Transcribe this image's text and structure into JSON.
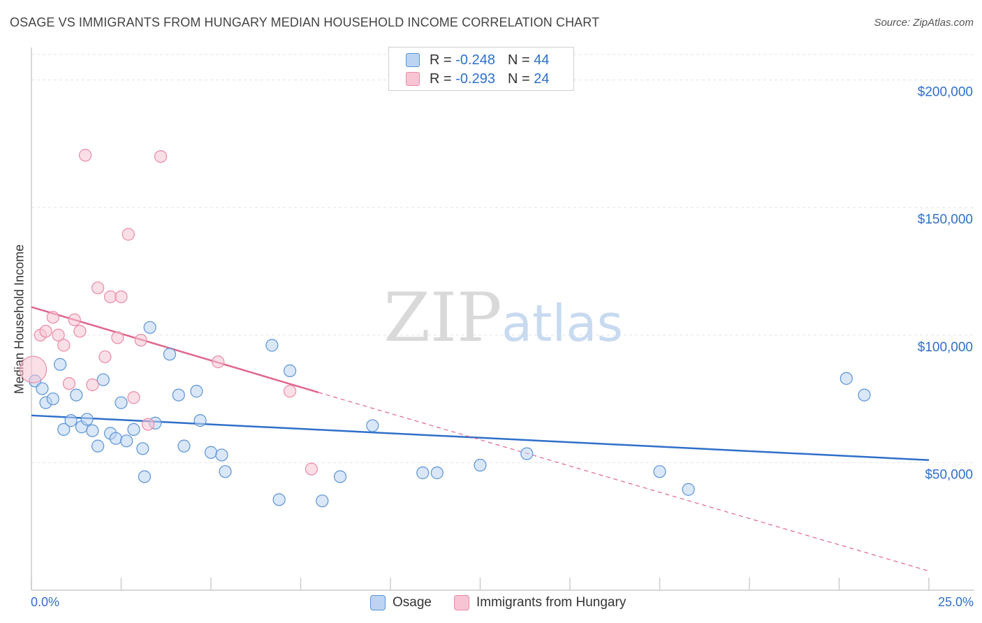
{
  "chart_data": {
    "type": "scatter",
    "title": "OSAGE VS IMMIGRANTS FROM HUNGARY MEDIAN HOUSEHOLD INCOME CORRELATION CHART",
    "source": "Source: ZipAtlas.com",
    "watermark": {
      "zip": "ZIP",
      "atlas": "atlas"
    },
    "xlabel": "",
    "ylabel": "Median Household Income",
    "xlim": [
      0,
      25
    ],
    "ylim": [
      0,
      210000
    ],
    "x_tick_labels": {
      "left": "0.0%",
      "right": "25.0%"
    },
    "x_minor_ticks": [
      0,
      2.5,
      5,
      7.5,
      10,
      12.5,
      15,
      17.5,
      20,
      22.5,
      25
    ],
    "y_ticks": [
      {
        "value": 50000,
        "label": "$50,000"
      },
      {
        "value": 100000,
        "label": "$100,000"
      },
      {
        "value": 150000,
        "label": "$150,000"
      },
      {
        "value": 200000,
        "label": "$200,000"
      }
    ],
    "grid": true,
    "legend": {
      "rows": [
        {
          "r_label": "R =",
          "r_value": "-0.248",
          "n_label": "N =",
          "n_value": "44"
        },
        {
          "r_label": "R =",
          "r_value": "-0.293",
          "n_label": "N =",
          "n_value": "24"
        }
      ]
    },
    "series": [
      {
        "name": "Osage",
        "color": "#5a93d6",
        "fill": "#bcd4f2",
        "line_color": "#2f6fca",
        "trend": {
          "x0": 0,
          "y0": 68500,
          "x1": 25,
          "y1": 51000,
          "dashed_extension": false
        },
        "points": [
          [
            0.1,
            82000
          ],
          [
            0.3,
            79000
          ],
          [
            0.4,
            73500
          ],
          [
            0.6,
            75000
          ],
          [
            0.8,
            88500
          ],
          [
            0.9,
            63000
          ],
          [
            1.1,
            66500
          ],
          [
            1.25,
            76500
          ],
          [
            1.4,
            64000
          ],
          [
            1.55,
            67000
          ],
          [
            1.7,
            62500
          ],
          [
            1.85,
            56500
          ],
          [
            2.0,
            82500
          ],
          [
            2.2,
            61500
          ],
          [
            2.35,
            59500
          ],
          [
            2.5,
            73500
          ],
          [
            2.65,
            58500
          ],
          [
            2.85,
            63000
          ],
          [
            3.1,
            55500
          ],
          [
            3.15,
            44500
          ],
          [
            3.3,
            103000
          ],
          [
            3.45,
            65500
          ],
          [
            3.85,
            92500
          ],
          [
            4.1,
            76500
          ],
          [
            4.25,
            56500
          ],
          [
            4.6,
            78000
          ],
          [
            4.7,
            66500
          ],
          [
            5.0,
            54000
          ],
          [
            5.3,
            53000
          ],
          [
            5.4,
            46500
          ],
          [
            6.7,
            96000
          ],
          [
            6.9,
            35500
          ],
          [
            7.2,
            86000
          ],
          [
            8.1,
            35000
          ],
          [
            8.6,
            44500
          ],
          [
            9.5,
            64500
          ],
          [
            10.9,
            46000
          ],
          [
            11.3,
            46000
          ],
          [
            12.5,
            49000
          ],
          [
            13.8,
            53500
          ],
          [
            17.5,
            46500
          ],
          [
            18.3,
            39500
          ],
          [
            22.7,
            83000
          ],
          [
            23.2,
            76500
          ]
        ]
      },
      {
        "name": "Immigrants from Hungary",
        "color": "#e88aa6",
        "fill": "#f8c4d3",
        "line_color": "#e0668c",
        "trend": {
          "x0": 0,
          "y0": 111000,
          "x1": 8,
          "y1": 77500,
          "dashed_extension": true,
          "ext_x1": 25,
          "ext_y1": 7500
        },
        "points": [
          [
            0.05,
            86500
          ],
          [
            0.25,
            100000
          ],
          [
            0.4,
            101500
          ],
          [
            0.6,
            107000
          ],
          [
            0.75,
            100000
          ],
          [
            0.9,
            96000
          ],
          [
            1.05,
            81000
          ],
          [
            1.2,
            106000
          ],
          [
            1.35,
            101500
          ],
          [
            1.5,
            170500
          ],
          [
            1.7,
            80500
          ],
          [
            1.85,
            118500
          ],
          [
            2.05,
            91500
          ],
          [
            2.2,
            115000
          ],
          [
            2.4,
            99000
          ],
          [
            2.5,
            115000
          ],
          [
            2.7,
            139500
          ],
          [
            2.85,
            75500
          ],
          [
            3.05,
            98000
          ],
          [
            3.25,
            65000
          ],
          [
            3.6,
            170000
          ],
          [
            5.2,
            89500
          ],
          [
            7.2,
            78000
          ],
          [
            7.8,
            47500
          ]
        ]
      }
    ]
  }
}
